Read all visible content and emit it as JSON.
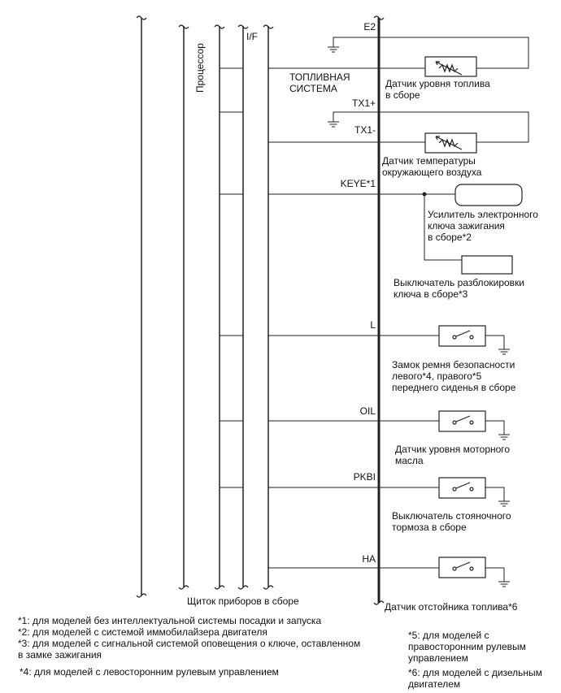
{
  "labels": {
    "processor": "Процессор",
    "if": "I/F",
    "fuel_system": "ТОПЛИВНАЯ\nСИСТЕМА",
    "e2": "E2",
    "tx1p": "TX1+",
    "tx1m": "TX1-",
    "keye": "KEYE*1",
    "l": "L",
    "oil": "OIL",
    "pkbi": "PKBI",
    "ha": "HA",
    "meter": "Щиток приборов в сборе"
  },
  "components": {
    "fuel_sender": "Датчик уровня топлива\nв сборе",
    "temp_sensor": "Датчик температуры\nокружающего воздуха",
    "amplifier": "Усилитель электронного\nключа зажигания\nв сборе*2",
    "unlock_switch": "Выключатель разблокировки\nключа в сборе*3",
    "seatbelt": "Замок ремня безопасности\nлевого*4, правого*5\nпереднего сиденья в сборе",
    "oil_sensor": "Датчик уровня моторного\nмасла",
    "parking_switch": "Выключатель стояночного\nтормоза в сборе",
    "sedimenter": "Датчик отстойника топлива*6"
  },
  "notes": {
    "n1": "*1: для моделей без интеллектуальной системы посадки и запуска",
    "n2": "*2: для моделей с системой иммобилайзера двигателя",
    "n3": "*3: для моделей с сигнальной системой оповещения о ключе, оставленном\nв замке зажигания",
    "n4": "*4: для моделей с левосторонним рулевым управлением",
    "n5": "*5: для моделей с\nправосторонним рулевым\nуправлением",
    "n6": "*6: для моделей с дизельным\nдвигателем"
  }
}
